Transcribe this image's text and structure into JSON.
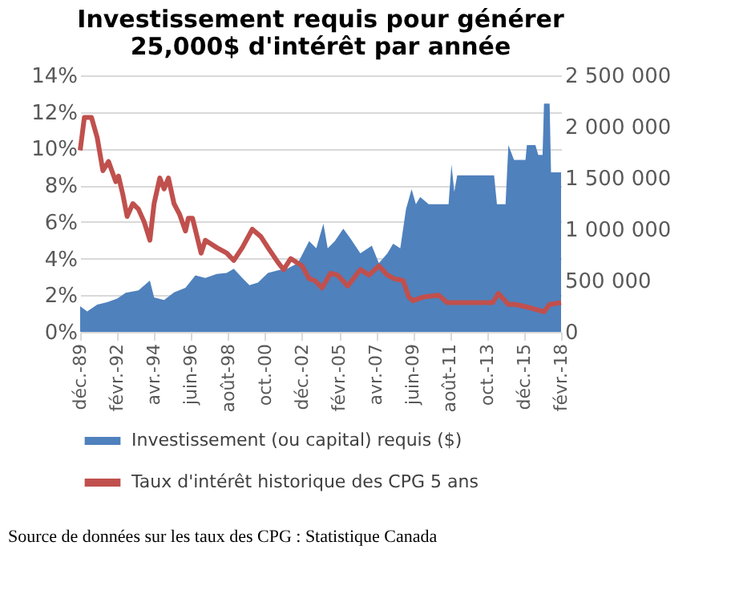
{
  "chart_data": {
    "type": "line",
    "title": "Investissement requis pour générer\n25,000$ d'intérêt par année",
    "xlim": [
      "1989-12",
      "2018-02"
    ],
    "xticks": [
      {
        "value": "1989-12",
        "label": "déc.-89"
      },
      {
        "value": "1992-02",
        "label": "févr.-92"
      },
      {
        "value": "1994-04",
        "label": "avr.-94"
      },
      {
        "value": "1996-06",
        "label": "juin-96"
      },
      {
        "value": "1998-08",
        "label": "août-98"
      },
      {
        "value": "2000-10",
        "label": "oct.-00"
      },
      {
        "value": "2002-12",
        "label": "déc.-02"
      },
      {
        "value": "2005-02",
        "label": "févr.-05"
      },
      {
        "value": "2007-04",
        "label": "avr.-07"
      },
      {
        "value": "2009-06",
        "label": "juin-09"
      },
      {
        "value": "2011-08",
        "label": "août-11"
      },
      {
        "value": "2013-10",
        "label": "oct.-13"
      },
      {
        "value": "2015-12",
        "label": "déc.-15"
      },
      {
        "value": "2018-02",
        "label": "févr.-18"
      }
    ],
    "ylim": [
      0,
      14
    ],
    "yticks": [
      {
        "value": 0,
        "label": "0%"
      },
      {
        "value": 2,
        "label": "2%"
      },
      {
        "value": 4,
        "label": "4%"
      },
      {
        "value": 6,
        "label": "6%"
      },
      {
        "value": 8,
        "label": "8%"
      },
      {
        "value": 10,
        "label": "10%"
      },
      {
        "value": 12,
        "label": "12%"
      },
      {
        "value": 14,
        "label": "14%"
      }
    ],
    "y2lim": [
      0,
      2500000
    ],
    "y2ticks": [
      {
        "value": 0,
        "label": "0"
      },
      {
        "value": 500000,
        "label": "500 000"
      },
      {
        "value": 1000000,
        "label": "1 000 000"
      },
      {
        "value": 1500000,
        "label": "1 500 000"
      },
      {
        "value": 2000000,
        "label": "2 000 000"
      },
      {
        "value": 2500000,
        "label": "2 500 000"
      }
    ],
    "grid": "y",
    "legend": "bottom",
    "series": [
      {
        "name": "Investissement (ou capital) requis ($)",
        "type": "area",
        "axis": "y2",
        "color": "#4f81bd",
        "x": [
          "1989-12",
          "1990-05",
          "1990-12",
          "1991-07",
          "1992-02",
          "1992-08",
          "1993-05",
          "1994-01",
          "1994-04",
          "1994-11",
          "1995-06",
          "1996-02",
          "1996-09",
          "1997-04",
          "1997-12",
          "1998-07",
          "1998-12",
          "1999-06",
          "1999-11",
          "2000-05",
          "2000-12",
          "2001-07",
          "2002-02",
          "2002-09",
          "2003-05",
          "2003-10",
          "2004-03",
          "2004-06",
          "2004-11",
          "2005-05",
          "2005-10",
          "2006-05",
          "2007-01",
          "2007-06",
          "2007-12",
          "2008-04",
          "2008-09",
          "2009-01",
          "2009-05",
          "2009-08",
          "2009-11",
          "2010-05",
          "2010-12",
          "2011-07",
          "2011-09",
          "2011-11",
          "2012-01",
          "2013-01",
          "2014-03",
          "2014-05",
          "2014-11",
          "2015-01",
          "2015-05",
          "2016-01",
          "2016-02",
          "2016-08",
          "2016-10",
          "2017-01",
          "2017-02",
          "2017-06",
          "2017-07",
          "2018-02"
        ],
        "values": [
          250000,
          200000,
          265000,
          290000,
          325000,
          380000,
          405000,
          500000,
          335000,
          310000,
          385000,
          430000,
          550000,
          525000,
          565000,
          575000,
          615000,
          525000,
          455000,
          480000,
          575000,
          600000,
          620000,
          670000,
          885000,
          815000,
          1055000,
          815000,
          885000,
          1005000,
          910000,
          765000,
          840000,
          670000,
          765000,
          860000,
          815000,
          1195000,
          1390000,
          1245000,
          1315000,
          1245000,
          1245000,
          1245000,
          1630000,
          1365000,
          1525000,
          1525000,
          1525000,
          1245000,
          1245000,
          1820000,
          1675000,
          1675000,
          1820000,
          1820000,
          1725000,
          1725000,
          2225000,
          2225000,
          1555000,
          1555000
        ]
      },
      {
        "name": "Taux d'intérêt historique des CPG 5 ans",
        "type": "line",
        "color": "#c0504d",
        "x": [
          "1989-12",
          "1990-03",
          "1990-08",
          "1990-12",
          "1991-04",
          "1991-08",
          "1992-01",
          "1992-03",
          "1992-06",
          "1992-09",
          "1993-01",
          "1993-05",
          "1993-09",
          "1994-01",
          "1994-04",
          "1994-08",
          "1994-11",
          "1995-02",
          "1995-06",
          "1995-10",
          "1996-02",
          "1996-04",
          "1996-07",
          "1997-01",
          "1997-04",
          "1997-12",
          "1998-07",
          "1998-12",
          "1999-06",
          "2000-01",
          "2000-07",
          "2000-12",
          "2001-07",
          "2001-11",
          "2002-04",
          "2002-12",
          "2003-05",
          "2003-09",
          "2004-02",
          "2004-08",
          "2005-01",
          "2005-08",
          "2006-05",
          "2006-11",
          "2007-06",
          "2007-12",
          "2008-05",
          "2008-11",
          "2009-03",
          "2009-06",
          "2010-01",
          "2010-12",
          "2011-06",
          "2012-06",
          "2014-02",
          "2014-06",
          "2015-01",
          "2015-06",
          "2016-05",
          "2017-02",
          "2017-06",
          "2018-02"
        ],
        "values": [
          9.9,
          11.7,
          11.7,
          10.6,
          8.8,
          9.3,
          8.2,
          8.5,
          7.5,
          6.3,
          7.0,
          6.7,
          6.0,
          5.0,
          7.0,
          8.4,
          7.8,
          8.4,
          7.0,
          6.4,
          5.5,
          6.2,
          6.2,
          4.3,
          5.0,
          4.6,
          4.3,
          3.9,
          4.6,
          5.6,
          5.2,
          4.6,
          3.8,
          3.4,
          4.0,
          3.6,
          2.9,
          2.8,
          2.4,
          3.2,
          3.1,
          2.5,
          3.4,
          3.1,
          3.6,
          3.1,
          2.9,
          2.8,
          1.9,
          1.7,
          1.9,
          2.0,
          1.6,
          1.6,
          1.6,
          2.1,
          1.5,
          1.5,
          1.3,
          1.1,
          1.5,
          1.6
        ]
      }
    ],
    "annotations": [
      "Source de données sur les taux des CPG : Statistique Canada"
    ]
  }
}
